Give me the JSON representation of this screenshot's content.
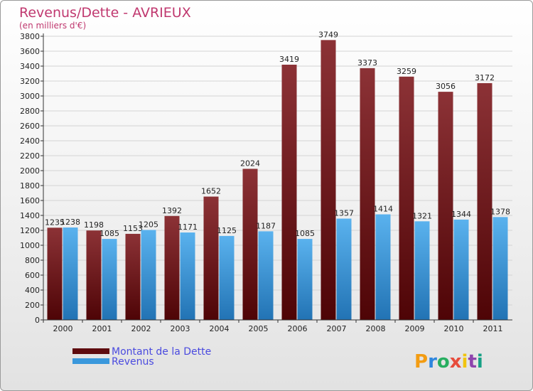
{
  "chart_data": {
    "type": "bar",
    "title": "Revenus/Dette - AVRIEUX",
    "subtitle": "(en milliers d'€)",
    "categories": [
      "2000",
      "2001",
      "2002",
      "2003",
      "2004",
      "2005",
      "2006",
      "2007",
      "2008",
      "2009",
      "2010",
      "2011"
    ],
    "series": [
      {
        "name": "Montant de la Dette",
        "values": [
          1235,
          1198,
          1153,
          1392,
          1652,
          2024,
          3419,
          3749,
          3373,
          3259,
          3056,
          3172
        ],
        "color": "#7a1518"
      },
      {
        "name": "Revenus",
        "values": [
          1238,
          1085,
          1205,
          1171,
          1125,
          1187,
          1085,
          1357,
          1414,
          1321,
          1344,
          1378
        ],
        "color": "#3a98dc"
      }
    ],
    "ylim": [
      0,
      3800
    ],
    "ytick_step": 200,
    "grid": true,
    "legend_position": "bottom-left"
  },
  "brand": {
    "logo_text": "Proxiti"
  }
}
